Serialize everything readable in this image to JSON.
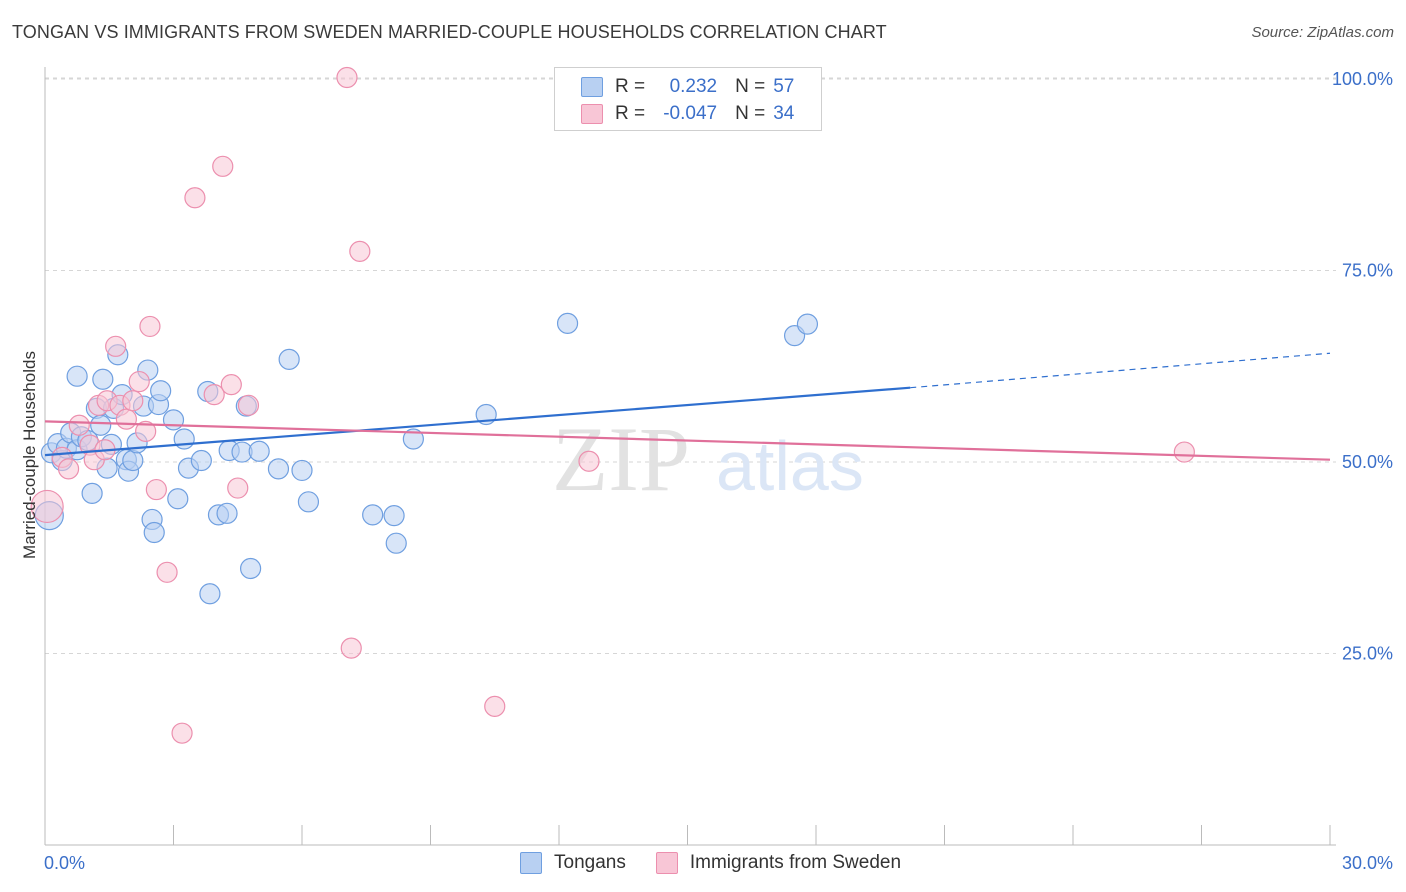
{
  "title": "TONGAN VS IMMIGRANTS FROM SWEDEN MARRIED-COUPLE HOUSEHOLDS CORRELATION CHART",
  "source": "Source: ZipAtlas.com",
  "watermark": {
    "zip": "ZIP",
    "atlas": "atlas"
  },
  "legend": {
    "rows": [
      {
        "r_label": "R =",
        "r_value": "0.232",
        "n_label": "N =",
        "n_value": "57"
      },
      {
        "r_label": "R =",
        "r_value": "-0.047",
        "n_label": "N =",
        "n_value": "34"
      }
    ]
  },
  "bottom_legend": {
    "series1": "Tongans",
    "series2": "Immigrants from Sweden"
  },
  "colors": {
    "blue_fill": "#b8d0f2",
    "blue_stroke": "#6f9fe0",
    "blue_line": "#2f6fcf",
    "pink_fill": "#f8c6d6",
    "pink_stroke": "#ec8fae",
    "pink_line": "#e0709a",
    "grid": "#d6d6d6",
    "axis_text": "#3b6fc9"
  },
  "chart_data": {
    "type": "scatter",
    "title": "TONGAN VS IMMIGRANTS FROM SWEDEN MARRIED-COUPLE HOUSEHOLDS CORRELATION CHART",
    "xlabel": "",
    "ylabel": "Married-couple Households",
    "xlim": [
      0,
      30
    ],
    "ylim": [
      0,
      102
    ],
    "x_tick_labels": [
      "0.0%",
      "30.0%"
    ],
    "y_ticks": [
      25,
      50,
      75,
      100
    ],
    "y_tick_labels": [
      "25.0%",
      "50.0%",
      "75.0%",
      "100.0%"
    ],
    "grid": true,
    "legend_position": "top-center",
    "series": [
      {
        "name": "Tongans",
        "R": 0.232,
        "N": 57,
        "trend": {
          "x0": 0,
          "y0": 50.9,
          "x1": 20.2,
          "y1": 59.7,
          "dashed_to_x": 30,
          "dashed_to_y": 64.2
        },
        "points": [
          [
            0.1,
            43.0,
            14
          ],
          [
            0.15,
            51.2,
            10
          ],
          [
            0.3,
            52.4,
            10
          ],
          [
            0.4,
            50.2,
            10
          ],
          [
            0.5,
            51.8,
            10
          ],
          [
            0.6,
            53.8,
            10
          ],
          [
            0.75,
            51.6,
            10
          ],
          [
            0.75,
            61.2,
            10
          ],
          [
            0.85,
            53.3,
            10
          ],
          [
            1.0,
            52.8,
            10
          ],
          [
            1.1,
            45.9,
            10
          ],
          [
            1.2,
            57.0,
            10
          ],
          [
            1.3,
            54.8,
            10
          ],
          [
            1.35,
            60.8,
            10
          ],
          [
            1.45,
            49.2,
            10
          ],
          [
            1.55,
            52.3,
            10
          ],
          [
            1.6,
            57.0,
            10
          ],
          [
            1.7,
            64.0,
            10
          ],
          [
            1.8,
            58.8,
            10
          ],
          [
            1.9,
            50.3,
            10
          ],
          [
            1.95,
            48.8,
            10
          ],
          [
            2.05,
            50.2,
            10
          ],
          [
            2.15,
            52.5,
            10
          ],
          [
            2.3,
            57.3,
            10
          ],
          [
            2.4,
            62.0,
            10
          ],
          [
            2.5,
            42.5,
            10
          ],
          [
            2.55,
            40.8,
            10
          ],
          [
            2.65,
            57.5,
            10
          ],
          [
            2.7,
            59.3,
            10
          ],
          [
            3.0,
            55.5,
            10
          ],
          [
            3.1,
            45.2,
            10
          ],
          [
            3.25,
            53.0,
            10
          ],
          [
            3.35,
            49.2,
            10
          ],
          [
            3.65,
            50.2,
            10
          ],
          [
            3.8,
            59.2,
            10
          ],
          [
            3.85,
            32.8,
            10
          ],
          [
            4.05,
            43.1,
            10
          ],
          [
            4.25,
            43.3,
            10
          ],
          [
            4.3,
            51.5,
            10
          ],
          [
            4.6,
            51.3,
            10
          ],
          [
            4.7,
            57.3,
            10
          ],
          [
            4.8,
            36.1,
            10
          ],
          [
            5.0,
            51.4,
            10
          ],
          [
            5.45,
            49.1,
            10
          ],
          [
            5.7,
            63.4,
            10
          ],
          [
            6.0,
            48.9,
            10
          ],
          [
            6.15,
            44.8,
            10
          ],
          [
            7.65,
            43.1,
            10
          ],
          [
            8.15,
            43.0,
            10
          ],
          [
            8.2,
            39.4,
            10
          ],
          [
            8.6,
            53.0,
            10
          ],
          [
            10.3,
            56.2,
            10
          ],
          [
            12.2,
            68.1,
            10
          ],
          [
            17.5,
            66.5,
            10
          ],
          [
            17.8,
            68.0,
            10
          ]
        ]
      },
      {
        "name": "Immigrants from Sweden",
        "R": -0.047,
        "N": 34,
        "trend": {
          "x0": 0,
          "y0": 55.3,
          "x1": 30,
          "y1": 50.3
        },
        "points": [
          [
            0.05,
            44.2,
            16
          ],
          [
            0.4,
            50.6,
            10
          ],
          [
            0.55,
            49.1,
            10
          ],
          [
            0.8,
            54.8,
            10
          ],
          [
            1.05,
            52.2,
            10
          ],
          [
            1.15,
            50.3,
            10
          ],
          [
            1.25,
            57.4,
            10
          ],
          [
            1.4,
            51.6,
            10
          ],
          [
            1.45,
            58.0,
            10
          ],
          [
            1.65,
            65.1,
            10
          ],
          [
            1.75,
            57.4,
            10
          ],
          [
            1.9,
            55.6,
            10
          ],
          [
            2.05,
            58.0,
            10
          ],
          [
            2.2,
            60.5,
            10
          ],
          [
            2.35,
            54.0,
            10
          ],
          [
            2.45,
            67.7,
            10
          ],
          [
            2.6,
            46.4,
            10
          ],
          [
            2.85,
            35.6,
            10
          ],
          [
            3.2,
            14.6,
            10
          ],
          [
            3.5,
            84.5,
            10
          ],
          [
            3.95,
            58.8,
            10
          ],
          [
            4.15,
            88.6,
            10
          ],
          [
            4.35,
            60.1,
            10
          ],
          [
            4.5,
            46.6,
            10
          ],
          [
            4.75,
            57.4,
            10
          ],
          [
            7.05,
            100.2,
            10
          ],
          [
            7.15,
            25.7,
            10
          ],
          [
            7.35,
            77.5,
            10
          ],
          [
            10.5,
            18.1,
            10
          ],
          [
            12.7,
            50.1,
            10
          ],
          [
            26.6,
            51.3,
            10
          ]
        ]
      }
    ]
  }
}
